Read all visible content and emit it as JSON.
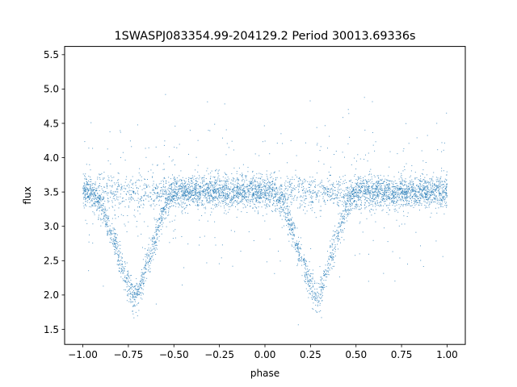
{
  "chart_data": {
    "type": "scatter",
    "title": "1SWASPJ083354.99-204129.2 Period 30013.69336s",
    "xlabel": "phase",
    "ylabel": "flux",
    "xlim": [
      -1.1,
      1.1
    ],
    "ylim": [
      1.28,
      5.62
    ],
    "xticks": [
      -1.0,
      -0.75,
      -0.5,
      -0.25,
      0.0,
      0.25,
      0.5,
      0.75,
      1.0
    ],
    "xtick_labels": [
      "−1.00",
      "−0.75",
      "−0.50",
      "−0.25",
      "0.00",
      "0.25",
      "0.50",
      "0.75",
      "1.00"
    ],
    "yticks": [
      1.5,
      2.0,
      2.5,
      3.0,
      3.5,
      4.0,
      4.5,
      5.0,
      5.5
    ],
    "ytick_labels": [
      "1.5",
      "2.0",
      "2.5",
      "3.0",
      "3.5",
      "4.0",
      "4.5",
      "5.0",
      "5.5"
    ],
    "grid": false,
    "marker_color": "#1f77b4",
    "series": [
      {
        "x": [
          -1.0,
          -0.95,
          -0.9,
          -0.85,
          -0.8,
          -0.75,
          -0.72,
          -0.7,
          -0.65,
          -0.6,
          -0.55,
          -0.5,
          -0.4,
          -0.3,
          -0.2,
          -0.1,
          0.0,
          0.05,
          0.1,
          0.15,
          0.2,
          0.25,
          0.28,
          0.3,
          0.35,
          0.4,
          0.45,
          0.5,
          0.6,
          0.7,
          0.8,
          0.9,
          1.0
        ],
        "y": [
          3.5,
          3.5,
          3.3,
          2.95,
          2.55,
          2.15,
          1.95,
          2.0,
          2.45,
          2.85,
          3.3,
          3.5,
          3.5,
          3.5,
          3.5,
          3.5,
          3.5,
          3.5,
          3.3,
          2.95,
          2.55,
          2.15,
          1.95,
          2.0,
          2.45,
          2.85,
          3.3,
          3.5,
          3.5,
          3.5,
          3.5,
          3.5,
          3.5
        ]
      }
    ]
  }
}
